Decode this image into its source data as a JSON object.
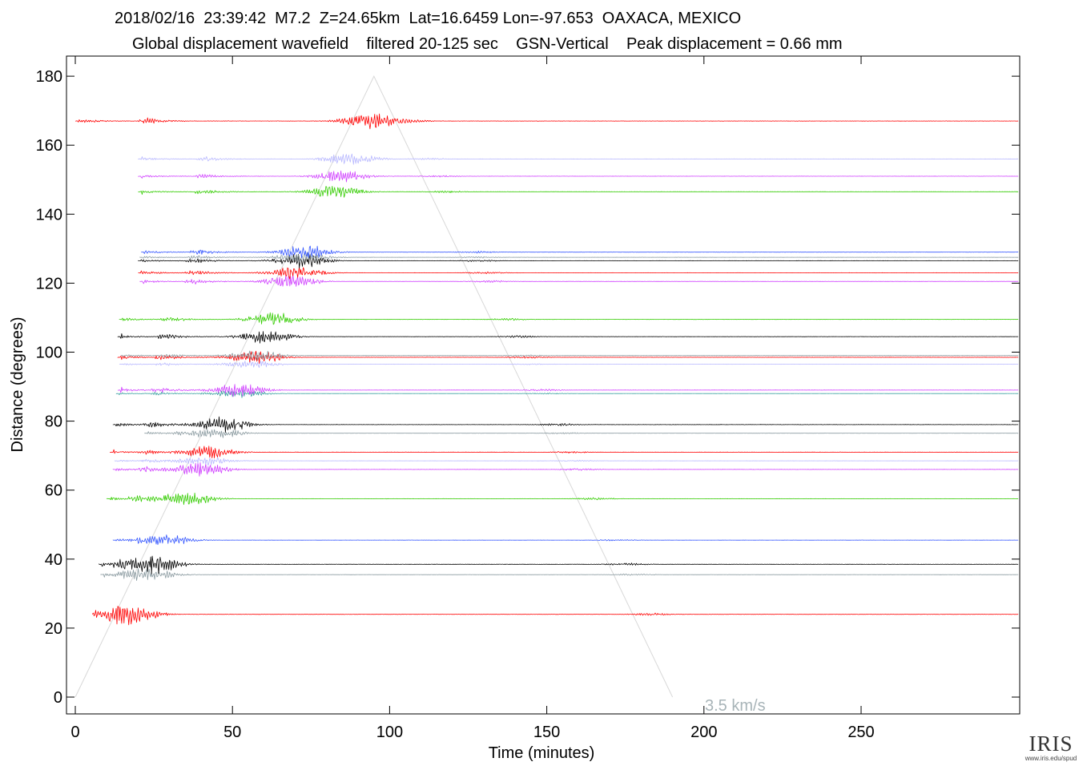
{
  "title": {
    "line1": "2018/02/16  23:39:42  M7.2  Z=24.65km  Lat=16.6459 Lon=-97.653  OAXACA, MEXICO",
    "line2": "Global displacement wavefield    filtered 20-125 sec    GSN-Vertical    Peak displacement = 0.66 mm"
  },
  "logo": {
    "text": "IRIS",
    "url": "www.iris.edu/spud"
  },
  "chart_data": {
    "type": "line",
    "xlabel": "Time (minutes)",
    "ylabel": "Distance (degrees)",
    "xlim": [
      0,
      300
    ],
    "ylim": [
      -5,
      185
    ],
    "xticks": [
      0,
      50,
      100,
      150,
      200,
      250
    ],
    "yticks": [
      0,
      20,
      40,
      60,
      80,
      100,
      120,
      140,
      160,
      180
    ],
    "grid": false,
    "annotation": {
      "text": "3.5 km/s",
      "x": 200,
      "y": -2
    },
    "reference_line": {
      "points": [
        [
          0,
          0
        ],
        [
          95,
          180
        ],
        [
          190,
          0
        ]
      ],
      "color": "#d8d8d8"
    },
    "colors": {
      "red": "#ff0000",
      "lavender": "#b8b8ff",
      "magenta": "#d040ff",
      "green": "#33cc00",
      "blue": "#3355ff",
      "black": "#000000",
      "gray": "#8a9aa0",
      "teal": "#3aa0a0"
    },
    "series": [
      {
        "distance": 24.0,
        "start": 5.5,
        "color": "#ff0000",
        "amp": 1.0
      },
      {
        "distance": 35.5,
        "start": 8.0,
        "color": "#8a9aa0",
        "amp": 0.7
      },
      {
        "distance": 38.5,
        "start": 7.5,
        "color": "#000000",
        "amp": 1.0
      },
      {
        "distance": 45.5,
        "start": 12.0,
        "color": "#3355ff",
        "amp": 0.6
      },
      {
        "distance": 57.5,
        "start": 10.0,
        "color": "#33cc00",
        "amp": 0.9
      },
      {
        "distance": 66.0,
        "start": 12.0,
        "color": "#d040ff",
        "amp": 0.8
      },
      {
        "distance": 68.5,
        "start": 12.5,
        "color": "#b8b8ff",
        "amp": 0.5
      },
      {
        "distance": 71.0,
        "start": 11.0,
        "color": "#ff0000",
        "amp": 0.7
      },
      {
        "distance": 76.5,
        "start": 22.0,
        "color": "#8a9aa0",
        "amp": 0.6
      },
      {
        "distance": 79.0,
        "start": 12.0,
        "color": "#000000",
        "amp": 0.9
      },
      {
        "distance": 88.0,
        "start": 13.0,
        "color": "#3aa0a0",
        "amp": 0.5
      },
      {
        "distance": 89.0,
        "start": 13.5,
        "color": "#d040ff",
        "amp": 0.8
      },
      {
        "distance": 96.5,
        "start": 14.0,
        "color": "#b8b8ff",
        "amp": 0.5
      },
      {
        "distance": 98.5,
        "start": 13.5,
        "color": "#ff0000",
        "amp": 0.8
      },
      {
        "distance": 99.0,
        "start": 14.5,
        "color": "#8a9aa0",
        "amp": 0.6
      },
      {
        "distance": 104.5,
        "start": 13.5,
        "color": "#000000",
        "amp": 0.8
      },
      {
        "distance": 109.5,
        "start": 14.0,
        "color": "#33cc00",
        "amp": 0.8
      },
      {
        "distance": 120.5,
        "start": 20.5,
        "color": "#d040ff",
        "amp": 0.8
      },
      {
        "distance": 123.0,
        "start": 20.0,
        "color": "#ff0000",
        "amp": 0.8
      },
      {
        "distance": 126.5,
        "start": 20.0,
        "color": "#000000",
        "amp": 0.8
      },
      {
        "distance": 127.5,
        "start": 20.5,
        "color": "#8a9aa0",
        "amp": 0.6
      },
      {
        "distance": 129.0,
        "start": 21.0,
        "color": "#3355ff",
        "amp": 0.8
      },
      {
        "distance": 146.5,
        "start": 20.0,
        "color": "#33cc00",
        "amp": 0.8
      },
      {
        "distance": 151.0,
        "start": 20.0,
        "color": "#d040ff",
        "amp": 0.7
      },
      {
        "distance": 156.0,
        "start": 20.0,
        "color": "#b8b8ff",
        "amp": 0.8
      },
      {
        "distance": 167.0,
        "start": 0.0,
        "color": "#ff0000",
        "amp": 1.0
      }
    ]
  }
}
